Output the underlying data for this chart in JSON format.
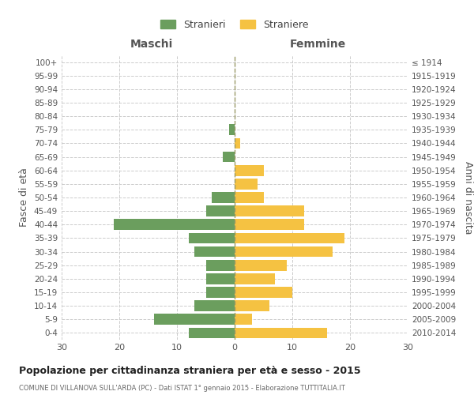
{
  "age_groups": [
    "0-4",
    "5-9",
    "10-14",
    "15-19",
    "20-24",
    "25-29",
    "30-34",
    "35-39",
    "40-44",
    "45-49",
    "50-54",
    "55-59",
    "60-64",
    "65-69",
    "70-74",
    "75-79",
    "80-84",
    "85-89",
    "90-94",
    "95-99",
    "100+"
  ],
  "birth_years": [
    "2010-2014",
    "2005-2009",
    "2000-2004",
    "1995-1999",
    "1990-1994",
    "1985-1989",
    "1980-1984",
    "1975-1979",
    "1970-1974",
    "1965-1969",
    "1960-1964",
    "1955-1959",
    "1950-1954",
    "1945-1949",
    "1940-1944",
    "1935-1939",
    "1930-1934",
    "1925-1929",
    "1920-1924",
    "1915-1919",
    "≤ 1914"
  ],
  "males": [
    8,
    14,
    7,
    5,
    5,
    5,
    7,
    8,
    21,
    5,
    4,
    0,
    0,
    2,
    0,
    1,
    0,
    0,
    0,
    0,
    0
  ],
  "females": [
    16,
    3,
    6,
    10,
    7,
    9,
    17,
    19,
    12,
    12,
    5,
    4,
    5,
    0,
    1,
    0,
    0,
    0,
    0,
    0,
    0
  ],
  "male_color": "#6b9e5e",
  "female_color": "#f5c242",
  "background_color": "#ffffff",
  "grid_color": "#cccccc",
  "title": "Popolazione per cittadinanza straniera per età e sesso - 2015",
  "subtitle": "COMUNE DI VILLANOVA SULL'ARDA (PC) - Dati ISTAT 1° gennaio 2015 - Elaborazione TUTTITALIA.IT",
  "left_label": "Maschi",
  "right_label": "Femmine",
  "left_axis_label": "Fasce di età",
  "right_axis_label": "Anni di nascita",
  "legend_male": "Stranieri",
  "legend_female": "Straniere",
  "xlim": 30,
  "bar_height": 0.8
}
